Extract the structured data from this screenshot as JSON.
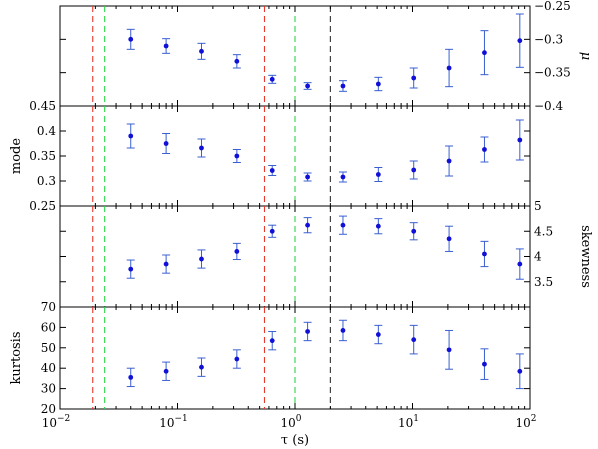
{
  "chart_data": [
    {
      "type": "scatter",
      "panel": "mu",
      "ylabel": "μ",
      "ylabel_side": "right",
      "ylim": [
        -0.4,
        -0.25
      ],
      "yticks": [
        -0.25,
        -0.3,
        -0.35,
        -0.4
      ],
      "ytick_labels": [
        "−0.25",
        "−0.3",
        "−0.35",
        "−0.4"
      ],
      "x": [
        0.04,
        0.08,
        0.16,
        0.32,
        0.64,
        1.28,
        2.56,
        5.12,
        10.24,
        20.48,
        40.96,
        81.92
      ],
      "values": [
        -0.3,
        -0.31,
        -0.318,
        -0.333,
        -0.36,
        -0.37,
        -0.37,
        -0.367,
        -0.358,
        -0.343,
        -0.32,
        -0.302
      ],
      "errors": [
        0.015,
        0.011,
        0.012,
        0.01,
        0.006,
        0.005,
        0.008,
        0.01,
        0.015,
        0.028,
        0.033,
        0.04
      ]
    },
    {
      "type": "scatter",
      "panel": "mode",
      "ylabel": "mode",
      "ylabel_side": "left",
      "ylim": [
        0.25,
        0.45
      ],
      "yticks": [
        0.25,
        0.3,
        0.35,
        0.4,
        0.45
      ],
      "ytick_labels": [
        "0.25",
        "0.3",
        "0.35",
        "0.4",
        "0.45"
      ],
      "x": [
        0.04,
        0.08,
        0.16,
        0.32,
        0.64,
        1.28,
        2.56,
        5.12,
        10.24,
        20.48,
        40.96,
        81.92
      ],
      "values": [
        0.39,
        0.375,
        0.366,
        0.35,
        0.321,
        0.308,
        0.308,
        0.313,
        0.322,
        0.34,
        0.363,
        0.382
      ],
      "errors": [
        0.024,
        0.02,
        0.018,
        0.013,
        0.01,
        0.008,
        0.01,
        0.014,
        0.018,
        0.03,
        0.025,
        0.04
      ]
    },
    {
      "type": "scatter",
      "panel": "skewness",
      "ylabel": "skewness",
      "ylabel_side": "right",
      "ylim": [
        3,
        5
      ],
      "yticks": [
        3.5,
        4,
        4.5,
        5
      ],
      "ytick_labels": [
        "3.5",
        "4",
        "4.5",
        "5"
      ],
      "x": [
        0.04,
        0.08,
        0.16,
        0.32,
        0.64,
        1.28,
        2.56,
        5.12,
        10.24,
        20.48,
        40.96,
        81.92
      ],
      "values": [
        3.75,
        3.85,
        3.95,
        4.1,
        4.5,
        4.62,
        4.62,
        4.6,
        4.5,
        4.35,
        4.05,
        3.85
      ],
      "errors": [
        0.18,
        0.18,
        0.18,
        0.16,
        0.12,
        0.15,
        0.18,
        0.15,
        0.17,
        0.25,
        0.25,
        0.3
      ]
    },
    {
      "type": "scatter",
      "panel": "kurtosis",
      "ylabel": "kurtosis",
      "ylabel_side": "left",
      "xlabel": "τ  (s)",
      "xscale": "log",
      "xlim": [
        0.01,
        100
      ],
      "xticks": [
        0.01,
        0.1,
        1,
        10,
        100
      ],
      "xtick_labels": [
        [
          "10",
          "−2"
        ],
        [
          "10",
          "−1"
        ],
        [
          "10",
          "0"
        ],
        [
          "10",
          "1"
        ],
        [
          "10",
          "2"
        ]
      ],
      "ylim": [
        20,
        70
      ],
      "yticks": [
        20,
        30,
        40,
        50,
        60,
        70
      ],
      "ytick_labels": [
        "20",
        "30",
        "40",
        "50",
        "60",
        "70"
      ],
      "x": [
        0.04,
        0.08,
        0.16,
        0.32,
        0.64,
        1.28,
        2.56,
        5.12,
        10.24,
        20.48,
        40.96,
        81.92
      ],
      "values": [
        35.5,
        38.5,
        40.5,
        44.5,
        53.5,
        58.0,
        58.5,
        56.5,
        54.0,
        49.0,
        42.0,
        38.5
      ],
      "errors": [
        4.5,
        4.5,
        4.5,
        4.5,
        4.5,
        4.5,
        5.0,
        4.5,
        7.0,
        9.5,
        7.5,
        8.5
      ]
    }
  ],
  "vertical_lines": [
    {
      "x": 0.019,
      "color": "#e8372c"
    },
    {
      "x": 0.024,
      "color": "#2ed24a"
    },
    {
      "x": 0.55,
      "color": "#e8372c"
    },
    {
      "x": 1.0,
      "color": "#2ed24a"
    },
    {
      "x": 2.0,
      "color": "#333333"
    }
  ],
  "style": {
    "marker_color": "#1010d8",
    "errorbar_color": "#3a5fd0"
  }
}
